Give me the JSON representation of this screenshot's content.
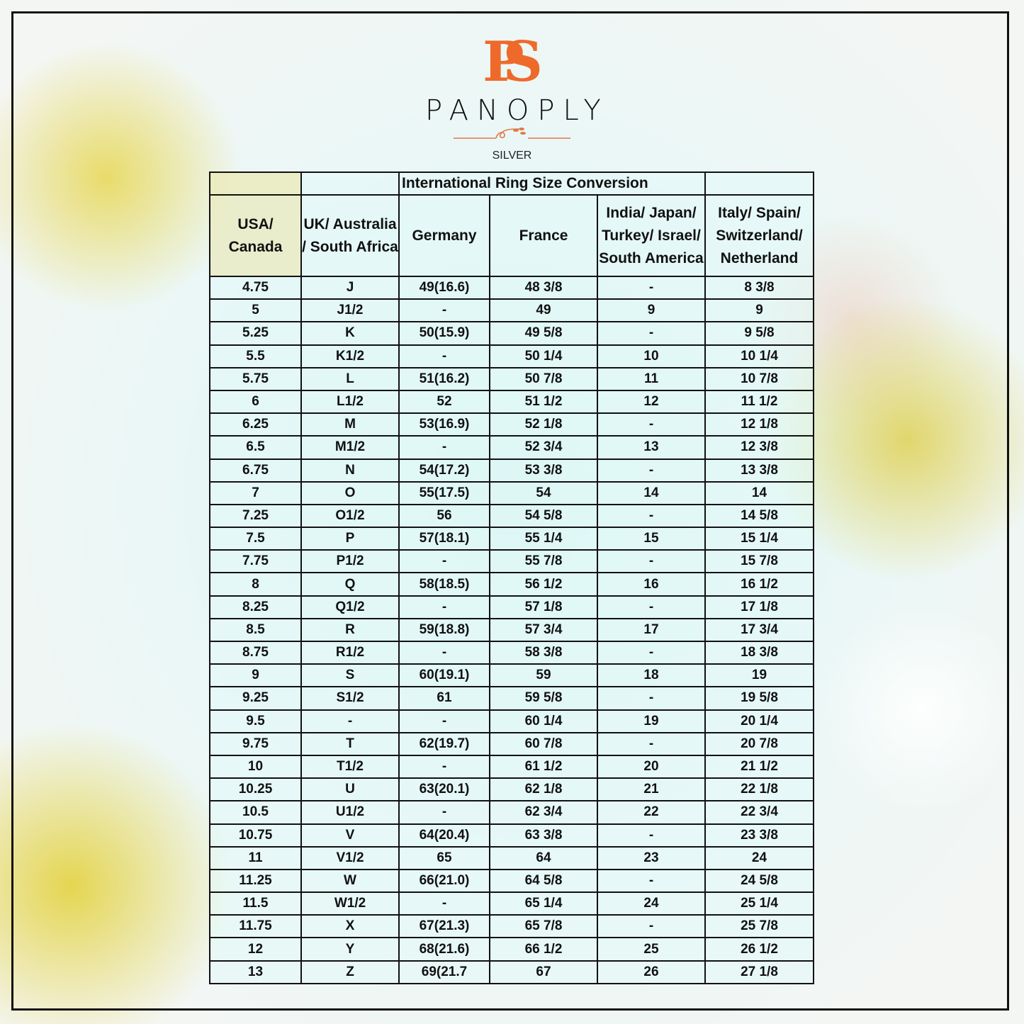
{
  "logo": {
    "monogram": "PS",
    "brand": "PANOPLY",
    "sub": "SILVER",
    "color": "#ee6a2a"
  },
  "title": "International Ring Size Conversion",
  "headers": [
    "USA/ Canada",
    "UK/ Australia / South Africa",
    "Germany",
    "France",
    "India/ Japan/ Turkey/ Israel/ South America",
    "Italy/ Spain/ Switzerland/ Netherland"
  ],
  "rows": [
    [
      "4.75",
      "J",
      "49(16.6)",
      "48 3/8",
      "-",
      "8 3/8"
    ],
    [
      "5",
      "J1/2",
      "-",
      "49",
      "9",
      "9"
    ],
    [
      "5.25",
      "K",
      "50(15.9)",
      "49 5/8",
      "-",
      "9 5/8"
    ],
    [
      "5.5",
      "K1/2",
      "-",
      "50 1/4",
      "10",
      "10 1/4"
    ],
    [
      "5.75",
      "L",
      "51(16.2)",
      "50 7/8",
      "11",
      "10 7/8"
    ],
    [
      "6",
      "L1/2",
      "52",
      "51 1/2",
      "12",
      "11 1/2"
    ],
    [
      "6.25",
      "M",
      "53(16.9)",
      "52 1/8",
      "-",
      "12 1/8"
    ],
    [
      "6.5",
      "M1/2",
      "-",
      "52 3/4",
      "13",
      "12 3/8"
    ],
    [
      "6.75",
      "N",
      "54(17.2)",
      "53 3/8",
      "-",
      "13 3/8"
    ],
    [
      "7",
      "O",
      "55(17.5)",
      "54",
      "14",
      "14"
    ],
    [
      "7.25",
      "O1/2",
      "56",
      "54 5/8",
      "-",
      "14 5/8"
    ],
    [
      "7.5",
      "P",
      "57(18.1)",
      "55 1/4",
      "15",
      "15 1/4"
    ],
    [
      "7.75",
      "P1/2",
      "-",
      "55 7/8",
      "-",
      "15 7/8"
    ],
    [
      "8",
      "Q",
      "58(18.5)",
      "56 1/2",
      "16",
      "16 1/2"
    ],
    [
      "8.25",
      "Q1/2",
      "-",
      "57 1/8",
      "-",
      "17 1/8"
    ],
    [
      "8.5",
      "R",
      "59(18.8)",
      "57 3/4",
      "17",
      "17 3/4"
    ],
    [
      "8.75",
      "R1/2",
      "-",
      "58 3/8",
      "-",
      "18 3/8"
    ],
    [
      "9",
      "S",
      "60(19.1)",
      "59",
      "18",
      "19"
    ],
    [
      "9.25",
      "S1/2",
      "61",
      "59 5/8",
      "-",
      "19 5/8"
    ],
    [
      "9.5",
      "-",
      "-",
      "60 1/4",
      "19",
      "20 1/4"
    ],
    [
      "9.75",
      "T",
      "62(19.7)",
      "60 7/8",
      "-",
      "20 7/8"
    ],
    [
      "10",
      "T1/2",
      "-",
      "61 1/2",
      "20",
      "21 1/2"
    ],
    [
      "10.25",
      "U",
      "63(20.1)",
      "62 1/8",
      "21",
      "22 1/8"
    ],
    [
      "10.5",
      "U1/2",
      "-",
      "62 3/4",
      "22",
      "22 3/4"
    ],
    [
      "10.75",
      "V",
      "64(20.4)",
      "63 3/8",
      "-",
      "23 3/8"
    ],
    [
      "11",
      "V1/2",
      "65",
      "64",
      "23",
      "24"
    ],
    [
      "11.25",
      "W",
      "66(21.0)",
      "64 5/8",
      "-",
      "24 5/8"
    ],
    [
      "11.5",
      "W1/2",
      "-",
      "65 1/4",
      "24",
      "25 1/4"
    ],
    [
      "11.75",
      "X",
      "67(21.3)",
      "65 7/8",
      "-",
      "25 7/8"
    ],
    [
      "12",
      "Y",
      "68(21.6)",
      "66 1/2",
      "25",
      "26 1/2"
    ],
    [
      "13",
      "Z",
      "69(21.7",
      "67",
      "26",
      "27 1/8"
    ]
  ]
}
